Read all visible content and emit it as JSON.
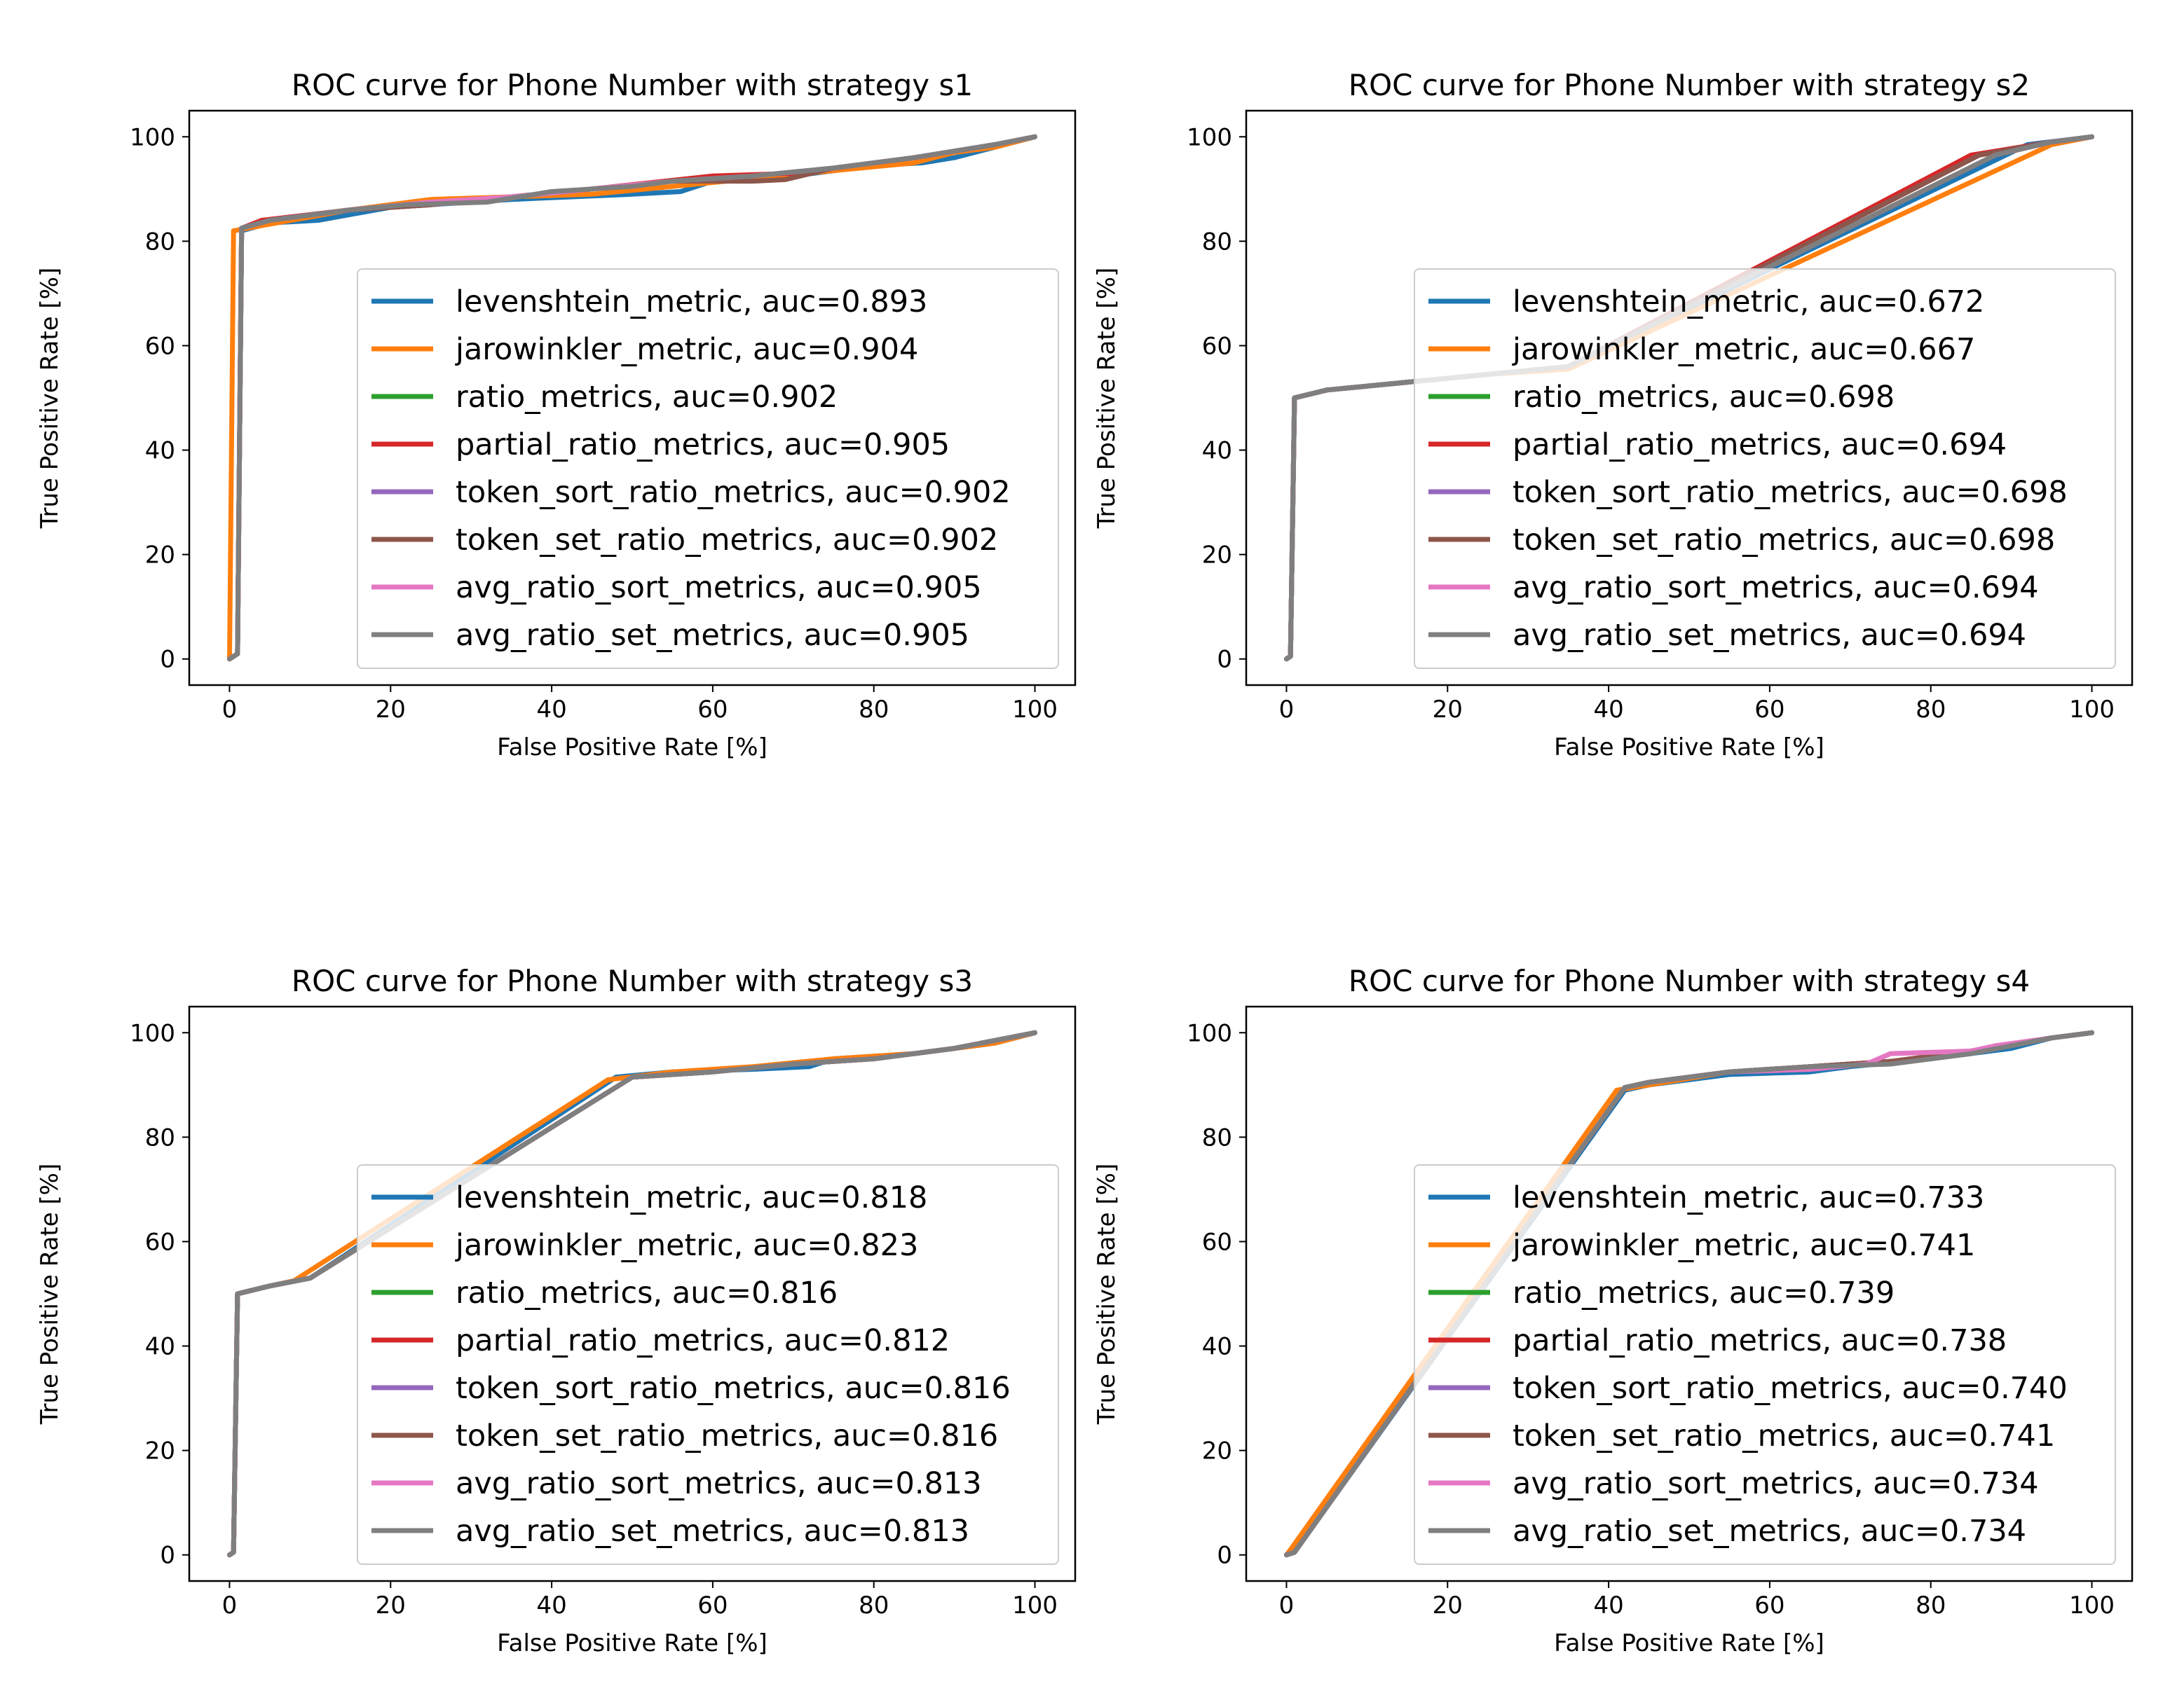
{
  "chart_data": [
    {
      "type": "line",
      "title": "ROC curve for Phone Number with strategy s1",
      "xlabel": "False Positive Rate [%]",
      "ylabel": "True Positive Rate [%]",
      "xlim": [
        -5,
        105
      ],
      "ylim": [
        -5,
        105
      ],
      "xticks": [
        "0",
        "20",
        "40",
        "60",
        "80",
        "100"
      ],
      "yticks": [
        "0",
        "20",
        "40",
        "60",
        "80",
        "100"
      ],
      "grid": false,
      "legend": "lower-right",
      "series": [
        {
          "name": "levenshtein_metric, auc=0.893",
          "color": "#1f77b4",
          "x": [
            0,
            1,
            1.5,
            5,
            11,
            20,
            35,
            50,
            56,
            60,
            70,
            80,
            86,
            90,
            95,
            100
          ],
          "y": [
            0,
            1,
            82,
            83.5,
            84,
            86.5,
            88,
            89,
            89.5,
            91.5,
            92.5,
            94.5,
            95,
            96,
            98,
            100
          ]
        },
        {
          "name": "jarowinkler_metric, auc=0.904",
          "color": "#ff7f0e",
          "x": [
            0,
            0.5,
            4,
            15,
            25,
            35,
            45,
            55,
            65,
            75,
            85,
            90,
            95,
            100
          ],
          "y": [
            0,
            82,
            83,
            86,
            88,
            88.5,
            89,
            90.5,
            92,
            93.5,
            95,
            97,
            98,
            100
          ]
        },
        {
          "name": "ratio_metrics, auc=0.902",
          "color": "#2ca02c",
          "x": [
            0,
            1,
            1.5,
            5,
            15,
            25,
            35,
            45,
            55,
            65,
            75,
            85,
            95,
            100
          ],
          "y": [
            0,
            1,
            82.5,
            84,
            86,
            87,
            88.5,
            90,
            91.5,
            92.5,
            94,
            96,
            98.5,
            100
          ]
        },
        {
          "name": "partial_ratio_metrics, auc=0.905",
          "color": "#d62728",
          "x": [
            0,
            1,
            1.5,
            4,
            15,
            25,
            35,
            45,
            60,
            70,
            75,
            85,
            95,
            100
          ],
          "y": [
            0,
            1,
            82.5,
            84,
            86,
            87,
            88.5,
            90,
            92.5,
            93,
            94,
            96,
            98.5,
            100
          ]
        },
        {
          "name": "token_sort_ratio_metrics, auc=0.902",
          "color": "#9467bd",
          "x": [
            0,
            1,
            1.5,
            5,
            15,
            25,
            35,
            45,
            55,
            65,
            75,
            85,
            95,
            100
          ],
          "y": [
            0,
            1,
            82.5,
            84,
            86,
            87,
            88.5,
            90,
            91.5,
            92.5,
            94,
            96,
            98.5,
            100
          ]
        },
        {
          "name": "token_set_ratio_metrics, auc=0.902",
          "color": "#8c564b",
          "x": [
            0,
            1,
            1.5,
            5,
            15,
            25,
            35,
            45,
            55,
            65,
            69,
            75,
            85,
            95,
            100
          ],
          "y": [
            0,
            1,
            82.5,
            84,
            86,
            87,
            88.5,
            90,
            91.5,
            91.5,
            91.8,
            94,
            96,
            98.5,
            100
          ]
        },
        {
          "name": "avg_ratio_sort_metrics, auc=0.905",
          "color": "#e377c2",
          "x": [
            0,
            1,
            1.5,
            5,
            15,
            25,
            35,
            45,
            55,
            65,
            75,
            85,
            95,
            100
          ],
          "y": [
            0,
            1,
            82.5,
            84,
            86,
            87.5,
            88.5,
            90,
            91.5,
            92.5,
            94,
            96,
            98.5,
            100
          ]
        },
        {
          "name": "avg_ratio_set_metrics, auc=0.905",
          "color": "#7f7f7f",
          "x": [
            0,
            1,
            1.5,
            5,
            15,
            22,
            32,
            40,
            50,
            55,
            65,
            75,
            85,
            95,
            100
          ],
          "y": [
            0,
            1,
            82.5,
            84,
            86,
            87,
            87.5,
            89.5,
            90.5,
            91.5,
            92.5,
            94,
            96,
            98.5,
            100
          ]
        }
      ]
    },
    {
      "type": "line",
      "title": "ROC curve for Phone Number with strategy s2",
      "xlabel": "False Positive Rate [%]",
      "ylabel": "True Positive Rate [%]",
      "xlim": [
        -5,
        105
      ],
      "ylim": [
        -5,
        105
      ],
      "xticks": [
        "0",
        "20",
        "40",
        "60",
        "80",
        "100"
      ],
      "yticks": [
        "0",
        "20",
        "40",
        "60",
        "80",
        "100"
      ],
      "grid": false,
      "legend": "lower-right",
      "series": [
        {
          "name": "levenshtein_metric, auc=0.672",
          "color": "#1f77b4",
          "x": [
            0,
            0.5,
            1,
            5,
            15,
            25,
            35,
            92,
            100
          ],
          "y": [
            0,
            0.5,
            50,
            51.5,
            53,
            54.5,
            56,
            98.5,
            100
          ]
        },
        {
          "name": "jarowinkler_metric, auc=0.667",
          "color": "#ff7f0e",
          "x": [
            0,
            0.5,
            1,
            5,
            15,
            25,
            35,
            95,
            100
          ],
          "y": [
            0,
            0.5,
            50,
            51.5,
            53,
            54.5,
            55.5,
            98.5,
            100
          ]
        },
        {
          "name": "ratio_metrics, auc=0.698",
          "color": "#2ca02c",
          "x": [
            0,
            0.5,
            1,
            5,
            15,
            25,
            35,
            86,
            95,
            100
          ],
          "y": [
            0,
            0.5,
            50,
            51.5,
            53,
            54.5,
            56,
            96.5,
            99,
            100
          ]
        },
        {
          "name": "partial_ratio_metrics, auc=0.694",
          "color": "#d62728",
          "x": [
            0,
            0.5,
            1,
            5,
            15,
            25,
            35,
            85,
            95,
            100
          ],
          "y": [
            0,
            0.5,
            50,
            51.5,
            53,
            54.5,
            56,
            96.5,
            99,
            100
          ]
        },
        {
          "name": "token_sort_ratio_metrics, auc=0.698",
          "color": "#9467bd",
          "x": [
            0,
            0.5,
            1,
            5,
            15,
            25,
            35,
            86,
            95,
            100
          ],
          "y": [
            0,
            0.5,
            50,
            51.5,
            53,
            54.5,
            56,
            96.5,
            99,
            100
          ]
        },
        {
          "name": "token_set_ratio_metrics, auc=0.698",
          "color": "#8c564b",
          "x": [
            0,
            0.5,
            1,
            5,
            15,
            25,
            35,
            86,
            95,
            100
          ],
          "y": [
            0,
            0.5,
            50,
            51.5,
            53,
            54.5,
            56,
            96.5,
            99,
            100
          ]
        },
        {
          "name": "avg_ratio_sort_metrics, auc=0.694",
          "color": "#e377c2",
          "x": [
            0,
            0.5,
            1,
            5,
            15,
            25,
            35,
            88,
            95,
            100
          ],
          "y": [
            0,
            0.5,
            50,
            51.5,
            53,
            54.5,
            56,
            96.5,
            99,
            100
          ]
        },
        {
          "name": "avg_ratio_set_metrics, auc=0.694",
          "color": "#7f7f7f",
          "x": [
            0,
            0.5,
            1,
            5,
            15,
            25,
            35,
            88,
            95,
            100
          ],
          "y": [
            0,
            0.5,
            50,
            51.5,
            53,
            54.5,
            56,
            96.5,
            99,
            100
          ]
        }
      ]
    },
    {
      "type": "line",
      "title": "ROC curve for Phone Number with strategy s3",
      "xlabel": "False Positive Rate [%]",
      "ylabel": "True Positive Rate [%]",
      "xlim": [
        -5,
        105
      ],
      "ylim": [
        -5,
        105
      ],
      "xticks": [
        "0",
        "20",
        "40",
        "60",
        "80",
        "100"
      ],
      "yticks": [
        "0",
        "20",
        "40",
        "60",
        "80",
        "100"
      ],
      "grid": false,
      "legend": "lower-right",
      "series": [
        {
          "name": "levenshtein_metric, auc=0.818",
          "color": "#1f77b4",
          "x": [
            0,
            0.5,
            1,
            5,
            10,
            48,
            55,
            65,
            72,
            75,
            85,
            95,
            100
          ],
          "y": [
            0,
            0.5,
            50,
            51.5,
            53,
            91.5,
            92.5,
            93,
            93.5,
            95,
            96,
            98,
            100
          ]
        },
        {
          "name": "jarowinkler_metric, auc=0.823",
          "color": "#ff7f0e",
          "x": [
            0,
            0.5,
            1,
            5,
            8,
            47,
            55,
            65,
            75,
            85,
            95,
            100
          ],
          "y": [
            0,
            0.5,
            50,
            51.5,
            52.5,
            91,
            92.5,
            93.5,
            95,
            96,
            98,
            100
          ]
        },
        {
          "name": "ratio_metrics, auc=0.816",
          "color": "#2ca02c",
          "x": [
            0,
            0.5,
            1,
            5,
            10,
            50,
            60,
            70,
            80,
            90,
            100
          ],
          "y": [
            0,
            0.5,
            50,
            51.5,
            53,
            91.5,
            92.5,
            94,
            95,
            97,
            100
          ]
        },
        {
          "name": "partial_ratio_metrics, auc=0.812",
          "color": "#d62728",
          "x": [
            0,
            0.5,
            1,
            5,
            10,
            50,
            60,
            70,
            80,
            90,
            100
          ],
          "y": [
            0,
            0.5,
            50,
            51.5,
            53,
            91.5,
            92.5,
            94,
            95,
            97,
            100
          ]
        },
        {
          "name": "token_sort_ratio_metrics, auc=0.816",
          "color": "#9467bd",
          "x": [
            0,
            0.5,
            1,
            5,
            10,
            50,
            60,
            70,
            80,
            90,
            100
          ],
          "y": [
            0,
            0.5,
            50,
            51.5,
            53,
            91.5,
            92.5,
            94,
            95,
            97,
            100
          ]
        },
        {
          "name": "token_set_ratio_metrics, auc=0.816",
          "color": "#8c564b",
          "x": [
            0,
            0.5,
            1,
            5,
            10,
            50,
            60,
            70,
            80,
            90,
            100
          ],
          "y": [
            0,
            0.5,
            50,
            51.5,
            53,
            91.5,
            92.5,
            94,
            95,
            97,
            100
          ]
        },
        {
          "name": "avg_ratio_sort_metrics, auc=0.813",
          "color": "#e377c2",
          "x": [
            0,
            0.5,
            1,
            5,
            10,
            50,
            60,
            70,
            80,
            90,
            100
          ],
          "y": [
            0,
            0.5,
            50,
            51.5,
            53,
            91.5,
            92.5,
            94,
            95,
            97,
            100
          ]
        },
        {
          "name": "avg_ratio_set_metrics, auc=0.813",
          "color": "#7f7f7f",
          "x": [
            0,
            0.5,
            1,
            5,
            10,
            50,
            60,
            70,
            80,
            90,
            100
          ],
          "y": [
            0,
            0.5,
            50,
            51.5,
            53,
            91.5,
            92.5,
            94,
            95,
            97,
            100
          ]
        }
      ]
    },
    {
      "type": "line",
      "title": "ROC curve for Phone Number with strategy s4",
      "xlabel": "False Positive Rate [%]",
      "ylabel": "True Positive Rate [%]",
      "xlim": [
        -5,
        105
      ],
      "ylim": [
        -5,
        105
      ],
      "xticks": [
        "0",
        "20",
        "40",
        "60",
        "80",
        "100"
      ],
      "yticks": [
        "0",
        "20",
        "40",
        "60",
        "80",
        "100"
      ],
      "grid": false,
      "legend": "lower-right",
      "series": [
        {
          "name": "levenshtein_metric, auc=0.733",
          "color": "#1f77b4",
          "x": [
            0,
            1,
            42,
            45,
            55,
            65,
            70,
            80,
            90,
            95,
            100
          ],
          "y": [
            0,
            0.5,
            89,
            90,
            92,
            92.5,
            93.5,
            95,
            97,
            99,
            100
          ]
        },
        {
          "name": "jarowinkler_metric, auc=0.741",
          "color": "#ff7f0e",
          "x": [
            0,
            0.5,
            41,
            45,
            55,
            65,
            75,
            85,
            95,
            100
          ],
          "y": [
            0,
            1,
            89,
            90,
            92.5,
            93.5,
            94.5,
            96.5,
            99,
            100
          ]
        },
        {
          "name": "ratio_metrics, auc=0.739",
          "color": "#2ca02c",
          "x": [
            0,
            1,
            42,
            45,
            55,
            65,
            75,
            85,
            95,
            100
          ],
          "y": [
            0,
            0.5,
            89.5,
            90.5,
            92.5,
            93.5,
            94.5,
            96.5,
            99,
            100
          ]
        },
        {
          "name": "partial_ratio_metrics, auc=0.738",
          "color": "#d62728",
          "x": [
            0,
            1,
            42,
            45,
            55,
            65,
            75,
            85,
            95,
            100
          ],
          "y": [
            0,
            0.5,
            89.5,
            90.5,
            92.5,
            93.5,
            94.5,
            96.5,
            99,
            100
          ]
        },
        {
          "name": "token_sort_ratio_metrics, auc=0.740",
          "color": "#9467bd",
          "x": [
            0,
            1,
            42,
            45,
            55,
            65,
            75,
            85,
            95,
            100
          ],
          "y": [
            0,
            0.5,
            89.5,
            90.5,
            92.5,
            93.5,
            94.5,
            96.5,
            99,
            100
          ]
        },
        {
          "name": "token_set_ratio_metrics, auc=0.741",
          "color": "#8c564b",
          "x": [
            0,
            1,
            42,
            45,
            55,
            65,
            75,
            85,
            95,
            100
          ],
          "y": [
            0,
            0.5,
            89.5,
            90.5,
            92.5,
            93.5,
            94.5,
            96.5,
            99,
            100
          ]
        },
        {
          "name": "avg_ratio_sort_metrics, auc=0.734",
          "color": "#e377c2",
          "x": [
            0,
            1,
            42,
            45,
            55,
            65,
            72,
            75,
            85,
            88,
            95,
            100
          ],
          "y": [
            0,
            0.5,
            89.5,
            90.5,
            92.5,
            93,
            94,
            96,
            96.5,
            97.5,
            99,
            100
          ]
        },
        {
          "name": "avg_ratio_set_metrics, auc=0.734",
          "color": "#7f7f7f",
          "x": [
            0,
            1,
            42,
            45,
            55,
            65,
            75,
            85,
            95,
            100
          ],
          "y": [
            0,
            0.5,
            89.5,
            90.5,
            92.5,
            93.5,
            94,
            96,
            99,
            100
          ]
        }
      ]
    }
  ]
}
